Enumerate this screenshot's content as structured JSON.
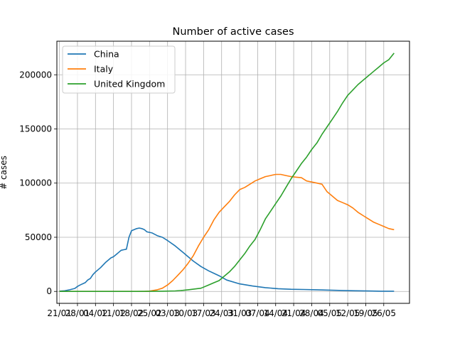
{
  "chart_data": {
    "type": "line",
    "title": "Number of active cases",
    "xlabel": "",
    "ylabel": "# cases",
    "grid": true,
    "legend_position": "top-left",
    "x_tick_labels": [
      "21/01",
      "28/01",
      "04/02",
      "11/02",
      "18/02",
      "25/02",
      "03/03",
      "10/03",
      "17/03",
      "24/03",
      "31/03",
      "07/04",
      "14/04",
      "21/04",
      "28/04",
      "05/05",
      "12/05",
      "19/05",
      "26/05"
    ],
    "xlim": [
      -1,
      136
    ],
    "y_ticks": [
      0,
      50000,
      100000,
      150000,
      200000
    ],
    "y_tick_labels": [
      "0",
      "50000",
      "100000",
      "150000",
      "200000"
    ],
    "ylim": [
      -11000,
      231000
    ],
    "series": [
      {
        "name": "China",
        "color": "#1f77b4",
        "x": [
          0,
          2,
          4,
          6,
          7,
          8,
          10,
          11,
          12,
          13,
          14,
          16,
          18,
          20,
          21,
          22,
          23,
          24,
          25,
          26,
          27,
          28,
          30,
          31,
          32,
          33,
          34,
          36,
          38,
          40,
          42,
          45,
          48,
          50,
          52,
          55,
          58,
          62,
          65,
          70,
          75,
          80,
          85,
          90,
          95,
          100,
          105,
          110,
          115,
          120,
          125,
          130
        ],
        "y": [
          300,
          600,
          1500,
          2800,
          4600,
          5900,
          8100,
          10500,
          12000,
          15500,
          18000,
          22000,
          27000,
          31000,
          32000,
          34000,
          36000,
          38000,
          38500,
          39000,
          50000,
          56000,
          58000,
          58500,
          58000,
          57000,
          55000,
          54000,
          51500,
          50000,
          47000,
          42000,
          36000,
          32000,
          28000,
          23000,
          19000,
          14500,
          10500,
          7000,
          5000,
          3500,
          2500,
          2000,
          1800,
          1500,
          1200,
          900,
          600,
          400,
          200,
          200
        ]
      },
      {
        "name": "Italy",
        "color": "#ff7f0e",
        "x": [
          0,
          5,
          10,
          15,
          20,
          25,
          30,
          33,
          35,
          38,
          40,
          42,
          44,
          46,
          48,
          50,
          52,
          54,
          56,
          58,
          60,
          62,
          64,
          66,
          68,
          70,
          72,
          74,
          76,
          78,
          80,
          82,
          84,
          86,
          88,
          90,
          92,
          94,
          96,
          98,
          100,
          102,
          104,
          106,
          108,
          110,
          112,
          114,
          116,
          118,
          120,
          122,
          124,
          126,
          128,
          130
        ],
        "y": [
          0,
          0,
          0,
          0,
          0,
          0,
          0,
          0,
          300,
          1500,
          3000,
          6000,
          10000,
          15000,
          20000,
          26000,
          33000,
          42000,
          50000,
          57000,
          66000,
          73000,
          78000,
          83000,
          89000,
          94000,
          96000,
          99000,
          102000,
          104000,
          106000,
          107000,
          108000,
          108000,
          107000,
          106000,
          105500,
          105000,
          102000,
          101000,
          100000,
          99000,
          92000,
          88000,
          84000,
          82000,
          80000,
          77000,
          73000,
          70000,
          67000,
          64000,
          62000,
          60000,
          58000,
          57000
        ]
      },
      {
        "name": "United Kingdom",
        "color": "#2ca02c",
        "x": [
          0,
          10,
          20,
          30,
          40,
          45,
          48,
          50,
          55,
          58,
          60,
          62,
          64,
          66,
          68,
          70,
          72,
          74,
          76,
          78,
          80,
          82,
          84,
          86,
          88,
          90,
          92,
          94,
          96,
          98,
          100,
          102,
          104,
          106,
          108,
          110,
          112,
          114,
          116,
          118,
          120,
          122,
          124,
          126,
          128,
          130
        ],
        "y": [
          0,
          0,
          0,
          0,
          200,
          500,
          1000,
          1500,
          3000,
          6000,
          8000,
          10000,
          14000,
          18000,
          23000,
          29000,
          35000,
          42000,
          48000,
          57000,
          67000,
          74000,
          81000,
          88000,
          96000,
          104000,
          111000,
          118000,
          124000,
          131000,
          137000,
          145000,
          152000,
          159000,
          166000,
          174000,
          181000,
          186000,
          191000,
          195000,
          199000,
          203000,
          207000,
          211000,
          214000,
          220000
        ]
      }
    ]
  }
}
